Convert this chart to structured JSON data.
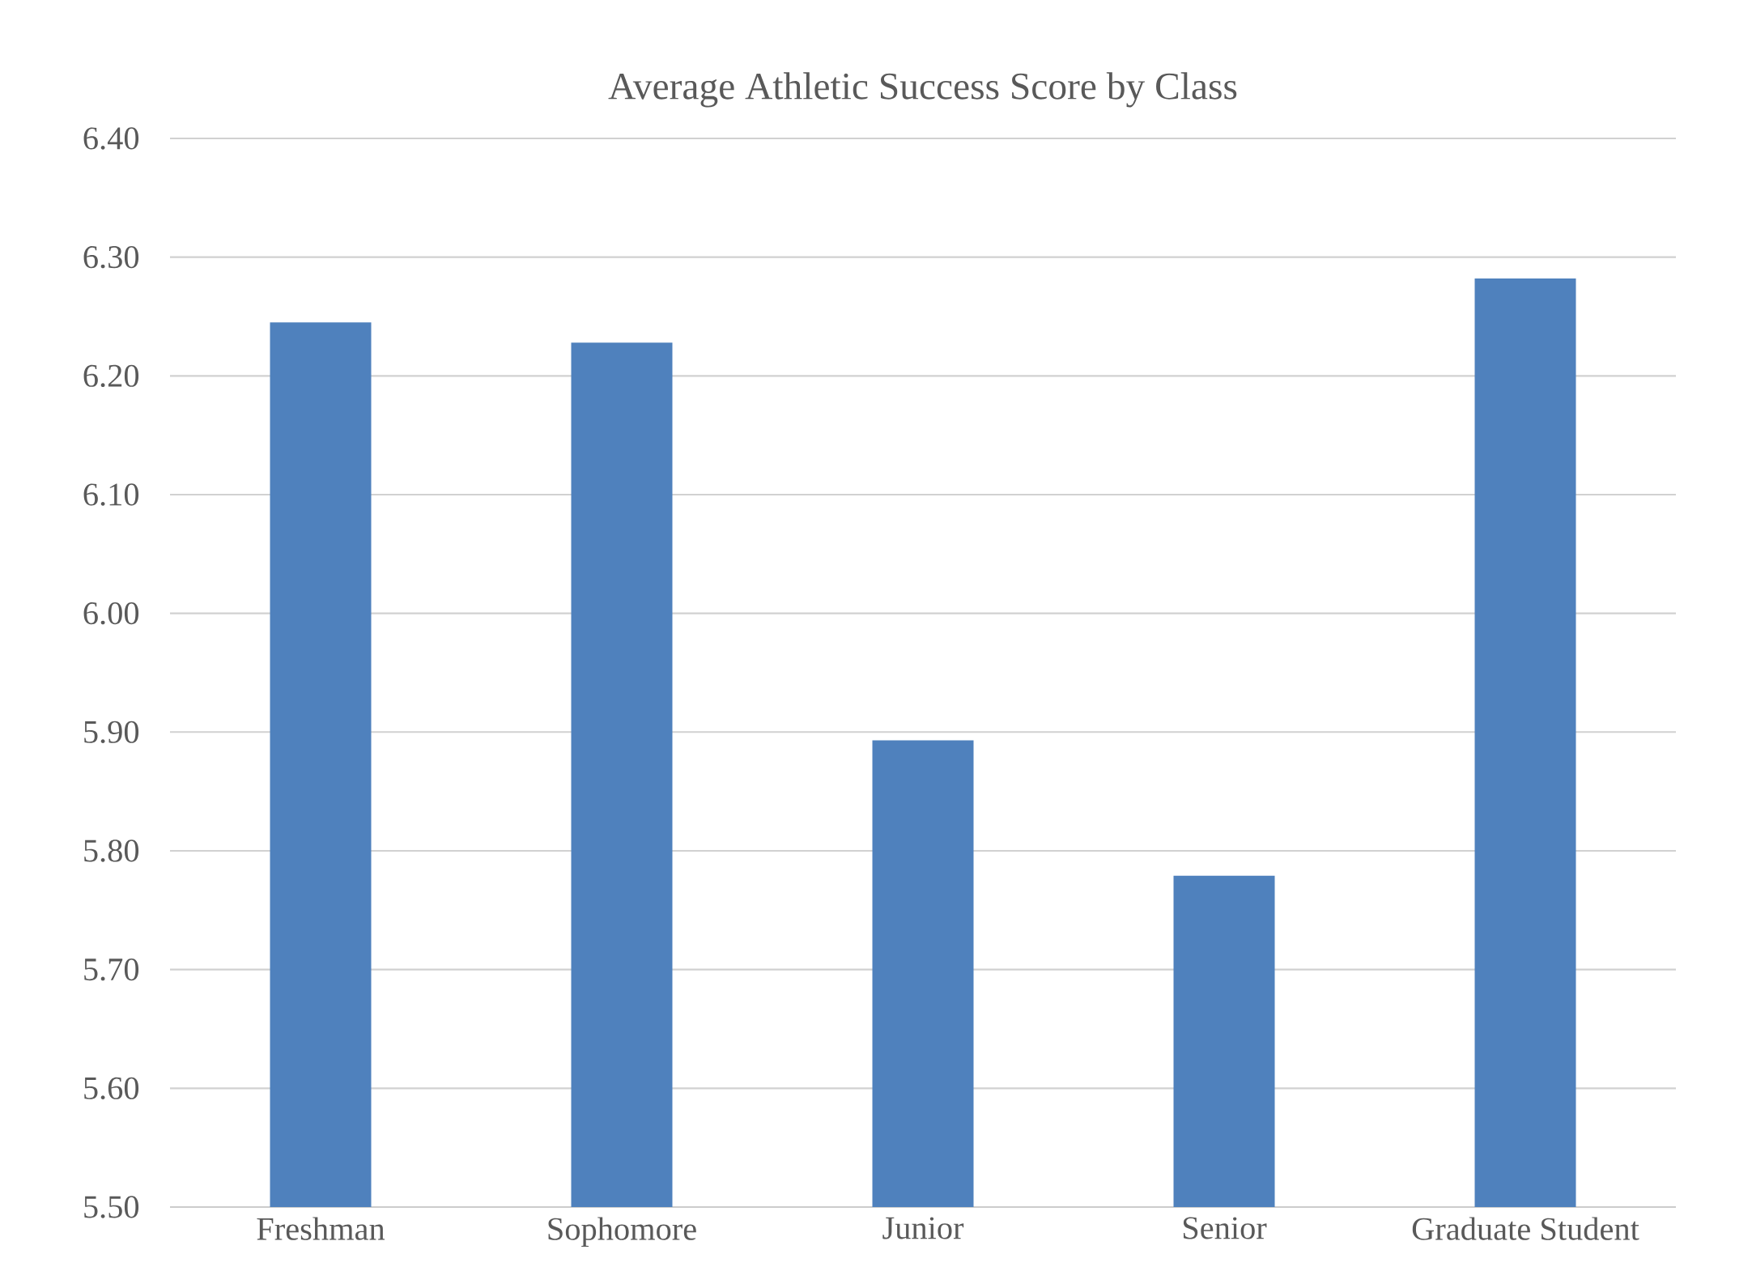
{
  "chart_data": {
    "type": "bar",
    "title": "Average Athletic Success Score by Class",
    "categories": [
      "Freshman",
      "Sophomore",
      "Junior",
      "Senior",
      "Graduate Student"
    ],
    "values": [
      6.245,
      6.228,
      5.893,
      5.779,
      6.282
    ],
    "color": "#4f81bd",
    "ylim": [
      5.5,
      6.4
    ],
    "yticks": [
      {
        "value": 5.5,
        "label": "5.50"
      },
      {
        "value": 5.6,
        "label": "5.60"
      },
      {
        "value": 5.7,
        "label": "5.70"
      },
      {
        "value": 5.8,
        "label": "5.80"
      },
      {
        "value": 5.9,
        "label": "5.90"
      },
      {
        "value": 6.0,
        "label": "6.00"
      },
      {
        "value": 6.1,
        "label": "6.10"
      },
      {
        "value": 6.2,
        "label": "6.20"
      },
      {
        "value": 6.3,
        "label": "6.30"
      },
      {
        "value": 6.4,
        "label": "6.40"
      }
    ],
    "grid": "y"
  }
}
